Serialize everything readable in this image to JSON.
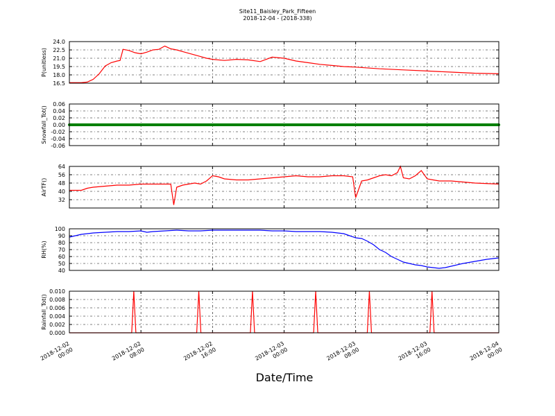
{
  "figure": {
    "title_line1": "Site11_Baisley_Park_Fifteen",
    "title_line2": "2018-12-04 - (2018-338)",
    "xlabel": "Date/Time"
  },
  "chart_data": [
    {
      "type": "line",
      "ylabel": "P(unitless)",
      "ylim": [
        16.5,
        24.0
      ],
      "yticks": [
        "16.5",
        "18.0",
        "19.5",
        "21.0",
        "22.5",
        "24.0"
      ],
      "ytick_values": [
        16.5,
        18.0,
        19.5,
        21.0,
        22.5,
        24.0
      ],
      "grid": true,
      "series": [
        {
          "color": "#ff0000",
          "x": [
            0,
            2,
            3,
            4,
            5,
            6,
            7,
            8,
            8.5,
            9,
            10,
            11,
            12,
            13,
            14,
            15,
            16,
            17,
            18,
            19,
            20,
            21,
            22,
            23,
            24,
            26,
            28,
            30,
            32,
            34,
            36,
            38,
            40,
            42,
            44,
            46,
            48,
            52,
            56,
            60,
            64,
            68,
            72
          ],
          "y": [
            16.6,
            16.6,
            16.7,
            17.2,
            18.2,
            19.6,
            20.2,
            20.5,
            20.6,
            22.6,
            22.4,
            22.0,
            21.8,
            22.1,
            22.5,
            22.6,
            23.2,
            22.7,
            22.5,
            22.2,
            21.9,
            21.6,
            21.3,
            21.0,
            20.8,
            20.6,
            20.8,
            20.7,
            20.4,
            21.2,
            21.0,
            20.5,
            20.2,
            19.9,
            19.7,
            19.5,
            19.4,
            19.1,
            18.9,
            18.7,
            18.5,
            18.3,
            18.2
          ]
        }
      ]
    },
    {
      "type": "line",
      "ylabel": "Snowfall_Tot()",
      "ylim": [
        -0.06,
        0.06
      ],
      "yticks": [
        "-0.06",
        "-0.04",
        "-0.02",
        "0.00",
        "0.02",
        "0.04",
        "0.06"
      ],
      "ytick_values": [
        -0.06,
        -0.04,
        -0.02,
        0.0,
        0.02,
        0.04,
        0.06
      ],
      "grid": true,
      "series": [
        {
          "color": "#008000",
          "marker": "circle",
          "x_start": 0,
          "x_end": 72,
          "constant_y": 0.0
        }
      ]
    },
    {
      "type": "line",
      "ylabel": "AirTF()",
      "ylim": [
        24,
        64
      ],
      "yticks": [
        "32",
        "40",
        "48",
        "56",
        "64"
      ],
      "ytick_values": [
        32,
        40,
        48,
        56,
        64
      ],
      "grid": true,
      "series": [
        {
          "color": "#ff0000",
          "x": [
            0,
            2,
            3,
            4,
            6,
            8,
            10,
            11,
            12,
            13,
            14,
            15,
            16,
            17,
            17.5,
            18,
            19,
            20,
            21,
            22,
            23,
            24,
            25,
            26,
            28,
            30,
            32,
            34,
            36,
            38,
            40,
            42,
            44,
            46,
            47.5,
            48,
            49,
            50,
            51,
            52,
            53,
            54,
            55,
            55.5,
            56,
            57,
            58,
            59,
            60,
            61,
            62,
            64,
            66,
            68,
            72
          ],
          "y": [
            41,
            41,
            43,
            44,
            45,
            46,
            46,
            46.5,
            47,
            47,
            47,
            47,
            47,
            47,
            27,
            44,
            46,
            47,
            48,
            47,
            50,
            55,
            54,
            52,
            51,
            51,
            52,
            53,
            54,
            55,
            54,
            54,
            55,
            55,
            54,
            34,
            50,
            51,
            53,
            55,
            56,
            55,
            58,
            64,
            53,
            52,
            55,
            60,
            52,
            51,
            50,
            50,
            49,
            48,
            47
          ]
        }
      ]
    },
    {
      "type": "line",
      "ylabel": "RH(%)",
      "ylim": [
        40,
        100
      ],
      "yticks": [
        "40",
        "50",
        "60",
        "70",
        "80",
        "90",
        "100"
      ],
      "ytick_values": [
        40,
        50,
        60,
        70,
        80,
        90,
        100
      ],
      "grid": true,
      "series": [
        {
          "color": "#0000ff",
          "x": [
            0,
            2,
            4,
            6,
            8,
            10,
            12,
            13,
            14,
            16,
            18,
            20,
            22,
            24,
            26,
            28,
            30,
            32,
            34,
            36,
            38,
            40,
            42,
            44,
            46,
            47,
            48,
            49,
            50,
            51,
            52,
            53,
            54,
            55,
            56,
            57,
            58,
            59,
            60,
            61,
            62,
            63,
            64,
            66,
            68,
            70,
            72
          ],
          "y": [
            88,
            92,
            94,
            95,
            96,
            96,
            97,
            95,
            96,
            97,
            98,
            97,
            97,
            98,
            98,
            98,
            98,
            98,
            97,
            97,
            96,
            96,
            96,
            95,
            93,
            90,
            87,
            86,
            82,
            77,
            70,
            66,
            60,
            56,
            52,
            50,
            48,
            47,
            45,
            44,
            43,
            44,
            46,
            50,
            53,
            56,
            58
          ]
        }
      ]
    },
    {
      "type": "line",
      "ylabel": "Rainfall_Tot()",
      "ylim": [
        0,
        0.01
      ],
      "yticks": [
        "0.000",
        "0.002",
        "0.004",
        "0.006",
        "0.008",
        "0.010"
      ],
      "ytick_values": [
        0,
        0.002,
        0.004,
        0.006,
        0.008,
        0.01
      ],
      "grid": true,
      "series": [
        {
          "color": "#ff0000",
          "spike_x": [
            10.8,
            21.7,
            30.7,
            41.3,
            50.3,
            60.8
          ],
          "spike_y": 0.01
        }
      ]
    }
  ],
  "xaxis": {
    "range": [
      0,
      72
    ],
    "ticks": [
      {
        "x": 0,
        "line1": "2018-12-02",
        "line2": "00:00"
      },
      {
        "x": 12,
        "line1": "2018-12-02",
        "line2": "08:00"
      },
      {
        "x": 24,
        "line1": "2018-12-02",
        "line2": "16:00"
      },
      {
        "x": 36,
        "line1": "2018-12-03",
        "line2": "00:00"
      },
      {
        "x": 48,
        "line1": "2018-12-03",
        "line2": "08:00"
      },
      {
        "x": 60,
        "line1": "2018-12-03",
        "line2": "16:00"
      },
      {
        "x": 72,
        "line1": "2018-12-04",
        "line2": "00:00"
      }
    ]
  }
}
